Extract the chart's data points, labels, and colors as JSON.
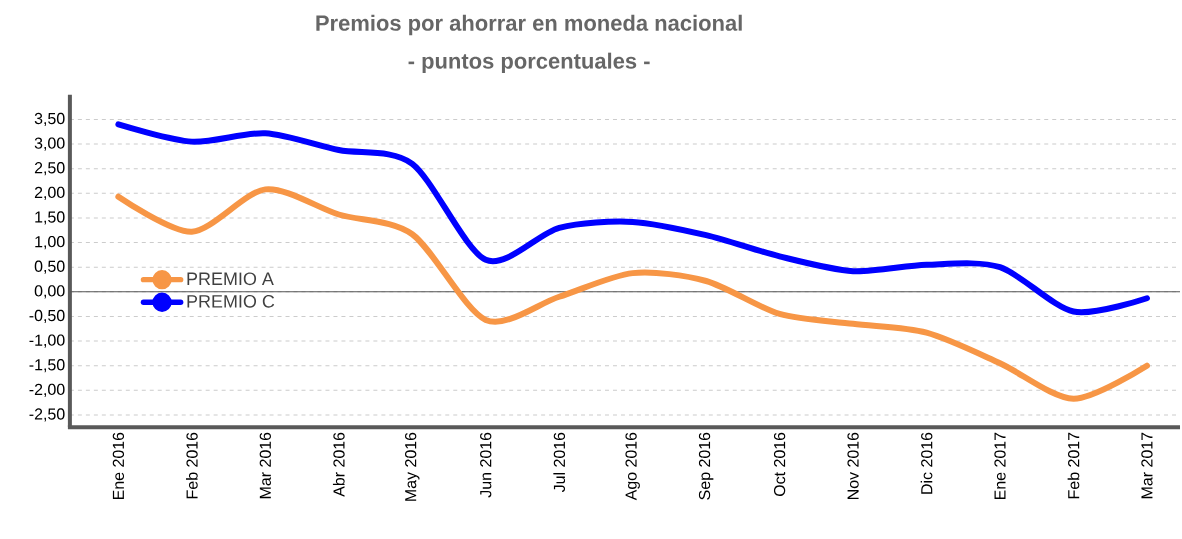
{
  "chart_data": {
    "type": "line",
    "title": "Premios por ahorrar en moneda nacional",
    "subtitle": "- puntos porcentuales -",
    "categories": [
      "Ene 2016",
      "Feb 2016",
      "Mar 2016",
      "Abr 2016",
      "May 2016",
      "Jun 2016",
      "Jul 2016",
      "Ago 2016",
      "Sep 2016",
      "Oct 2016",
      "Nov 2016",
      "Dic 2016",
      "Ene 2017",
      "Feb 2017",
      "Mar 2017"
    ],
    "series": [
      {
        "name": "PREMIO A",
        "color": "#f79646",
        "values": [
          1.93,
          1.22,
          2.08,
          1.57,
          1.17,
          -0.57,
          -0.1,
          0.38,
          0.22,
          -0.45,
          -0.65,
          -0.83,
          -1.45,
          -2.17,
          -1.5
        ]
      },
      {
        "name": "PREMIO C",
        "color": "#0000ff",
        "values": [
          3.4,
          3.05,
          3.22,
          2.88,
          2.6,
          0.65,
          1.3,
          1.42,
          1.15,
          0.72,
          0.42,
          0.55,
          0.5,
          -0.4,
          -0.13
        ]
      }
    ],
    "ylim": [
      -2.75,
      4.0
    ],
    "yticks": [
      {
        "value": -2.5,
        "label": "-2,50"
      },
      {
        "value": -2.0,
        "label": "-2,00"
      },
      {
        "value": -1.5,
        "label": "-1,50"
      },
      {
        "value": -1.0,
        "label": "-1,00"
      },
      {
        "value": -0.5,
        "label": "-0,50"
      },
      {
        "value": 0.0,
        "label": "0,00"
      },
      {
        "value": 0.5,
        "label": "0,50"
      },
      {
        "value": 1.0,
        "label": "1,00"
      },
      {
        "value": 1.5,
        "label": "1,50"
      },
      {
        "value": 2.0,
        "label": "2,00"
      },
      {
        "value": 2.5,
        "label": "2,50"
      },
      {
        "value": 3.0,
        "label": "3,00"
      },
      {
        "value": 3.5,
        "label": "3,50"
      }
    ],
    "ref_lines": [
      {
        "axis": "y",
        "value": 0,
        "color": "#555555"
      }
    ],
    "grid": "y",
    "legend": "left",
    "line_style": "solid"
  }
}
